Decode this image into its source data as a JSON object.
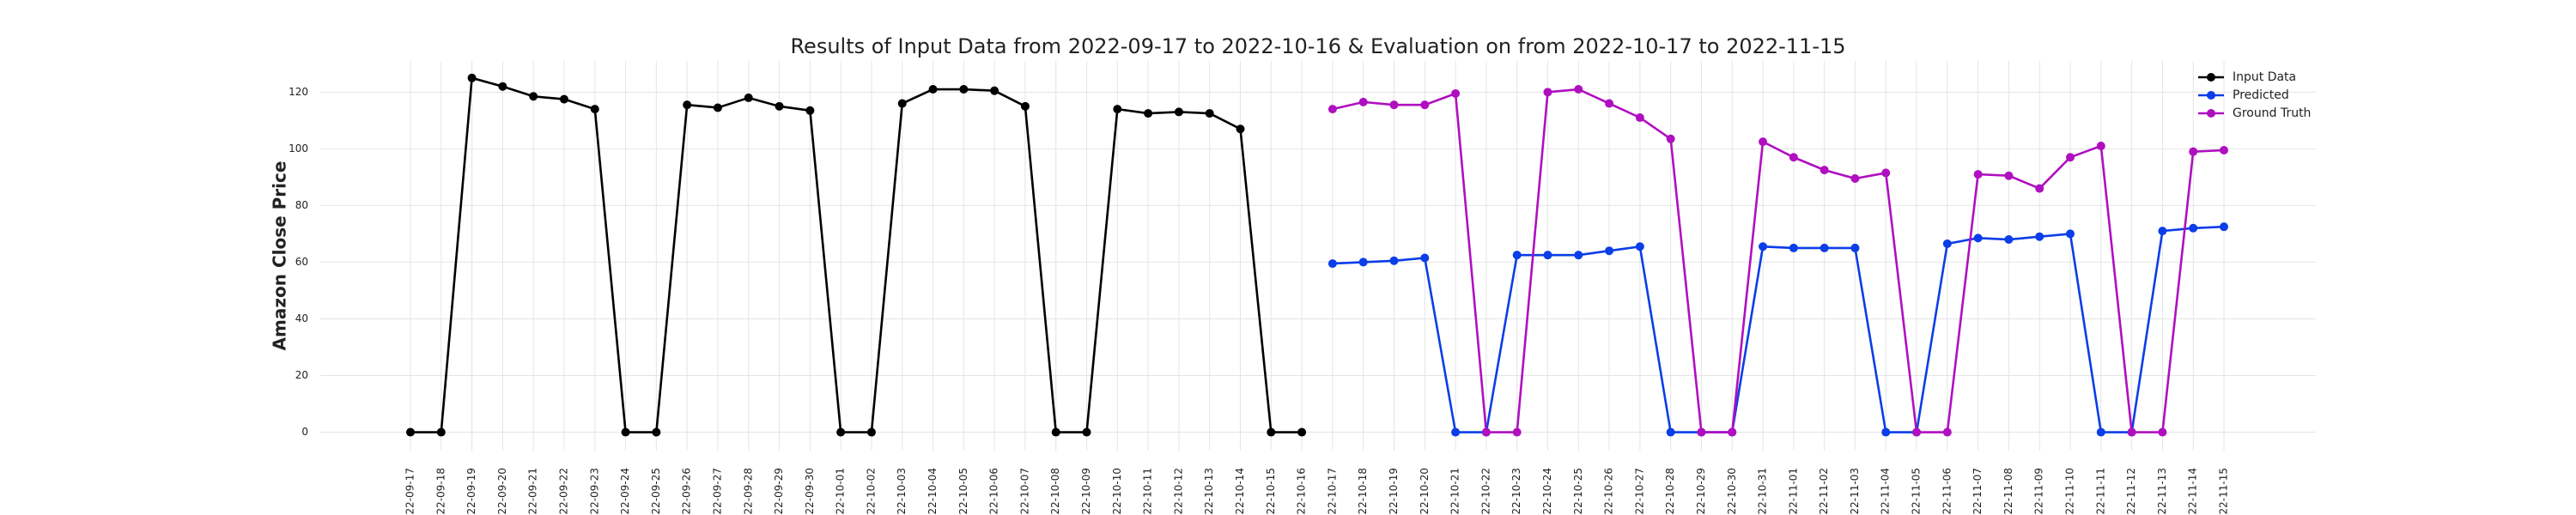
{
  "chart_data": {
    "type": "line",
    "title": "Results of Input Data from 2022-09-17 to 2022-10-16 & Evaluation on from 2022-10-17 to 2022-11-15",
    "y_label": "Amazon Close Price",
    "categories": [
      "2022-09-17",
      "2022-09-18",
      "2022-09-19",
      "2022-09-20",
      "2022-09-21",
      "2022-09-22",
      "2022-09-23",
      "2022-09-24",
      "2022-09-25",
      "2022-09-26",
      "2022-09-27",
      "2022-09-28",
      "2022-09-29",
      "2022-09-30",
      "2022-10-01",
      "2022-10-02",
      "2022-10-03",
      "2022-10-04",
      "2022-10-05",
      "2022-10-06",
      "2022-10-07",
      "2022-10-08",
      "2022-10-09",
      "2022-10-10",
      "2022-10-11",
      "2022-10-12",
      "2022-10-13",
      "2022-10-14",
      "2022-10-15",
      "2022-10-16",
      "2022-10-17",
      "2022-10-18",
      "2022-10-19",
      "2022-10-20",
      "2022-10-21",
      "2022-10-22",
      "2022-10-23",
      "2022-10-24",
      "2022-10-25",
      "2022-10-26",
      "2022-10-27",
      "2022-10-28",
      "2022-10-29",
      "2022-10-30",
      "2022-10-31",
      "2022-11-01",
      "2022-11-02",
      "2022-11-03",
      "2022-11-04",
      "2022-11-05",
      "2022-11-06",
      "2022-11-07",
      "2022-11-08",
      "2022-11-09",
      "2022-11-10",
      "2022-11-11",
      "2022-11-12",
      "2022-11-13",
      "2022-11-14",
      "2022-11-15"
    ],
    "series": [
      {
        "name": "Input Data",
        "color": "#000000",
        "values": [
          0,
          0,
          125,
          122,
          118.5,
          117.5,
          114,
          0,
          0,
          115.5,
          114.5,
          118,
          115,
          113.5,
          0,
          0,
          116,
          121,
          121,
          120.5,
          115,
          0,
          0,
          114,
          112.5,
          113,
          112.5,
          107,
          0,
          0,
          null,
          null,
          null,
          null,
          null,
          null,
          null,
          null,
          null,
          null,
          null,
          null,
          null,
          null,
          null,
          null,
          null,
          null,
          null,
          null,
          null,
          null,
          null,
          null,
          null,
          null,
          null,
          null,
          null,
          null
        ]
      },
      {
        "name": "Predicted",
        "color": "#0b3de8",
        "values": [
          null,
          null,
          null,
          null,
          null,
          null,
          null,
          null,
          null,
          null,
          null,
          null,
          null,
          null,
          null,
          null,
          null,
          null,
          null,
          null,
          null,
          null,
          null,
          null,
          null,
          null,
          null,
          null,
          null,
          null,
          59.5,
          60,
          60.5,
          61.5,
          0,
          0,
          62.5,
          62.5,
          62.5,
          64,
          65.5,
          0,
          0,
          0,
          65.5,
          65,
          65,
          65,
          0,
          0,
          66.5,
          68.5,
          68,
          69,
          70,
          0,
          0,
          71,
          72,
          72.5
        ]
      },
      {
        "name": "Ground Truth",
        "color": "#b00fc0",
        "values": [
          null,
          null,
          null,
          null,
          null,
          null,
          null,
          null,
          null,
          null,
          null,
          null,
          null,
          null,
          null,
          null,
          null,
          null,
          null,
          null,
          null,
          null,
          null,
          null,
          null,
          null,
          null,
          null,
          null,
          null,
          114,
          116.5,
          115.5,
          115.5,
          119.5,
          0,
          0,
          120,
          121,
          116,
          111,
          103.5,
          0,
          0,
          102.5,
          97,
          92.5,
          89.5,
          91.5,
          0,
          0,
          91,
          90.5,
          86,
          97,
          101,
          0,
          0,
          99,
          99.5
        ]
      }
    ],
    "ylim": [
      -6.5,
      131
    ],
    "yticks": [
      0,
      20,
      40,
      60,
      80,
      100,
      120
    ],
    "grid": true,
    "legend": "upper right"
  }
}
